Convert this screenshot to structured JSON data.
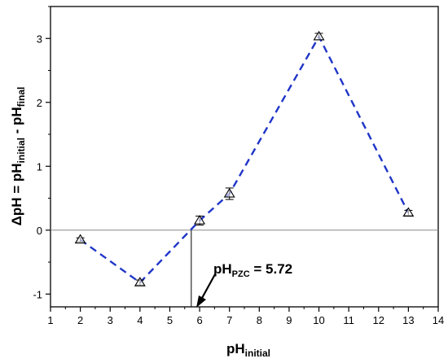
{
  "chart_data": {
    "type": "line",
    "title": "",
    "xlabel": {
      "main": "pH",
      "sub": "initial"
    },
    "ylabel": {
      "parts": [
        "ΔpH = pH",
        "initial",
        " - pH",
        "final"
      ]
    },
    "xlim": [
      1,
      14
    ],
    "ylim": [
      -1.2,
      3.5
    ],
    "x_ticks": [
      "1",
      "2",
      "3",
      "4",
      "5",
      "6",
      "7",
      "8",
      "9",
      "10",
      "11",
      "12",
      "13",
      "14"
    ],
    "y_ticks": [
      "-1",
      "0",
      "1",
      "2",
      "3"
    ],
    "grid": false,
    "series": [
      {
        "x": [
          2,
          4,
          6,
          7,
          10,
          13
        ],
        "y": [
          -0.15,
          -0.82,
          0.15,
          0.57,
          3.03,
          0.27
        ],
        "y_err": [
          0.03,
          0.04,
          0.07,
          0.09,
          0.05,
          0.04
        ],
        "marker": "open-triangle",
        "line_style": "dashed",
        "color": "#1f35c8"
      }
    ],
    "reference_lines": {
      "y_zero": true,
      "x_pzc": 5.72
    },
    "annotation": {
      "main": "pH",
      "sub": "PZC",
      "text": " = 5.72",
      "x": 5.72,
      "y": 0
    }
  }
}
